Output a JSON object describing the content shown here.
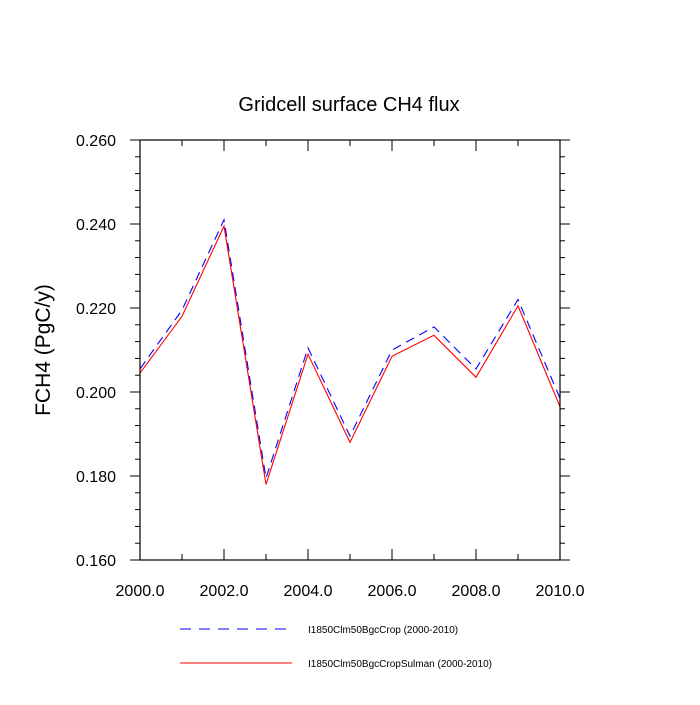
{
  "chart_data": {
    "type": "line",
    "title": "Gridcell surface CH4 flux",
    "xlabel": "",
    "ylabel": "FCH4  (PgC/y)",
    "xlim": [
      2000,
      2010
    ],
    "ylim": [
      0.16,
      0.26
    ],
    "xticks": [
      2000,
      2002,
      2004,
      2006,
      2008,
      2010
    ],
    "xtick_labels": [
      "2000.0",
      "2002.0",
      "2004.0",
      "2006.0",
      "2008.0",
      "2010.0"
    ],
    "yticks": [
      0.16,
      0.18,
      0.2,
      0.22,
      0.24,
      0.26
    ],
    "ytick_labels": [
      "0.160",
      "0.180",
      "0.200",
      "0.220",
      "0.240",
      "0.260"
    ],
    "grid": false,
    "legend_position": "bottom",
    "x": [
      2000,
      2001,
      2002,
      2003,
      2004,
      2005,
      2006,
      2007,
      2008,
      2009,
      2010
    ],
    "series": [
      {
        "name": "I1850Clm50BgcCrop (2000-2010)",
        "color": "#0000ff",
        "dash": "dashed",
        "values": [
          0.2055,
          0.2195,
          0.241,
          0.1795,
          0.2105,
          0.1895,
          0.21,
          0.2155,
          0.2055,
          0.222,
          0.1985
        ]
      },
      {
        "name": "I1850Clm50BgcCropSulman (2000-2010)",
        "color": "#ff0000",
        "dash": "solid",
        "values": [
          0.2045,
          0.218,
          0.2395,
          0.178,
          0.209,
          0.188,
          0.2085,
          0.2135,
          0.2035,
          0.2205,
          0.1965
        ]
      }
    ]
  }
}
